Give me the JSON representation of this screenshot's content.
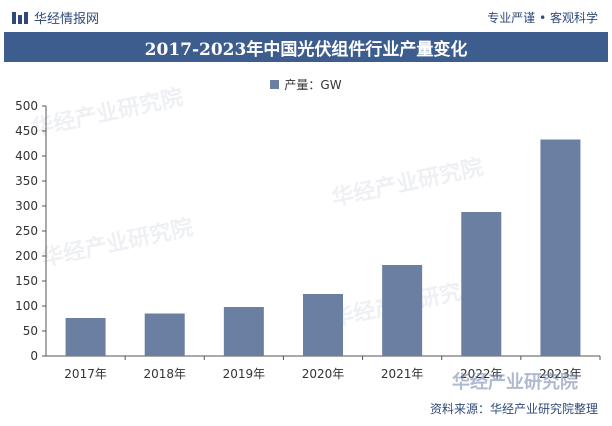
{
  "header": {
    "brand": "华经情报网",
    "tagline": "专业严谨 • 客观科学",
    "title": "2017-2023年中国光伏组件行业产量变化"
  },
  "colors": {
    "bar": "#6b7fa3",
    "title_bg": "#3e5d8f",
    "brand": "#2f4a7a",
    "axis": "#555555"
  },
  "watermark": {
    "text": "华经产业研究院"
  },
  "footer": {
    "source": "资料来源：华经产业研究院整理"
  },
  "chart_data": {
    "type": "bar",
    "categories": [
      "2017年",
      "2018年",
      "2019年",
      "2020年",
      "2021年",
      "2022年",
      "2023年"
    ],
    "series": [
      {
        "name": "产量：GW",
        "values": [
          76,
          85,
          98,
          124,
          182,
          288,
          433
        ]
      }
    ],
    "ylim": [
      0,
      500
    ],
    "yticks": [
      0,
      50,
      100,
      150,
      200,
      250,
      300,
      350,
      400,
      450,
      500
    ],
    "legend_position": "top-center",
    "grid": false
  }
}
